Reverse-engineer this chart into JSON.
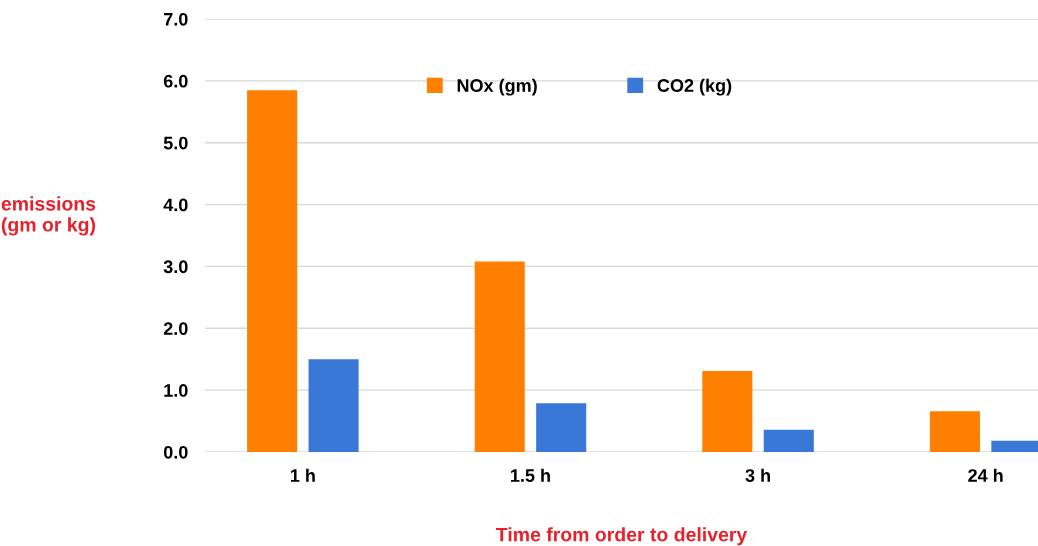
{
  "chart_data": {
    "type": "bar",
    "xlabel": "Time from order to delivery",
    "ylabel": "emissions\n(gm or kg)",
    "categories": [
      "1 h",
      "1.5 h",
      "3 h",
      "24 h"
    ],
    "series": [
      {
        "name": "NOx (gm)",
        "color": "#ff7f00",
        "values": [
          5.85,
          3.08,
          1.31,
          0.66
        ]
      },
      {
        "name": "CO2 (kg)",
        "color": "#3a78d8",
        "values": [
          1.5,
          0.79,
          0.36,
          0.18
        ]
      }
    ],
    "ylim": [
      0,
      7
    ],
    "yticks": [
      {
        "value": 0,
        "label": "0.0"
      },
      {
        "value": 1,
        "label": "1.0"
      },
      {
        "value": 2,
        "label": "2.0"
      },
      {
        "value": 3,
        "label": "3.0"
      },
      {
        "value": 4,
        "label": "4.0"
      },
      {
        "value": 5,
        "label": "5.0"
      },
      {
        "value": 6,
        "label": "6.0"
      },
      {
        "value": 7,
        "label": "7.0"
      }
    ],
    "grid": "y",
    "legend": "top"
  }
}
